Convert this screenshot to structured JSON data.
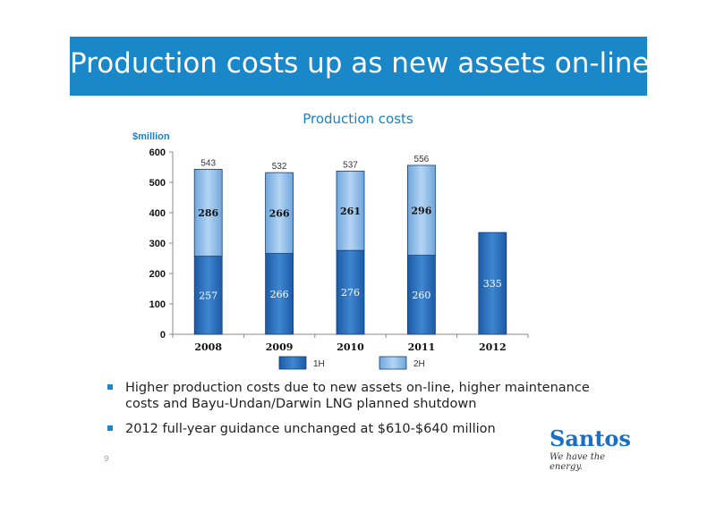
{
  "slide": {
    "title": "Production costs up as new assets on-line",
    "page_number": "9"
  },
  "bullets": [
    "Higher production costs due to new assets on-line, higher maintenance costs and Bayu-Undan/Darwin LNG planned shutdown",
    "2012 full-year guidance unchanged at $610-$640 million"
  ],
  "logo": {
    "name": "Santos",
    "tagline": "We have the energy."
  },
  "colors": {
    "title_bar": "#1a87c9",
    "series_1h": "#2a6db8",
    "series_2h": "#7fb3e6",
    "accent": "#1a7fc4"
  },
  "chart_data": {
    "type": "bar",
    "stacked": true,
    "title": "Production costs",
    "ylabel": "$million",
    "ylim": [
      0,
      600
    ],
    "yticks": [
      0,
      100,
      200,
      300,
      400,
      500,
      600
    ],
    "categories": [
      "2008",
      "2009",
      "2010",
      "2011",
      "2012"
    ],
    "series": [
      {
        "name": "1H",
        "values": [
          257,
          266,
          276,
          260,
          335
        ]
      },
      {
        "name": "2H",
        "values": [
          286,
          266,
          261,
          296,
          null
        ]
      }
    ],
    "totals": [
      543,
      532,
      537,
      556,
      null
    ],
    "legend_position": "bottom"
  }
}
